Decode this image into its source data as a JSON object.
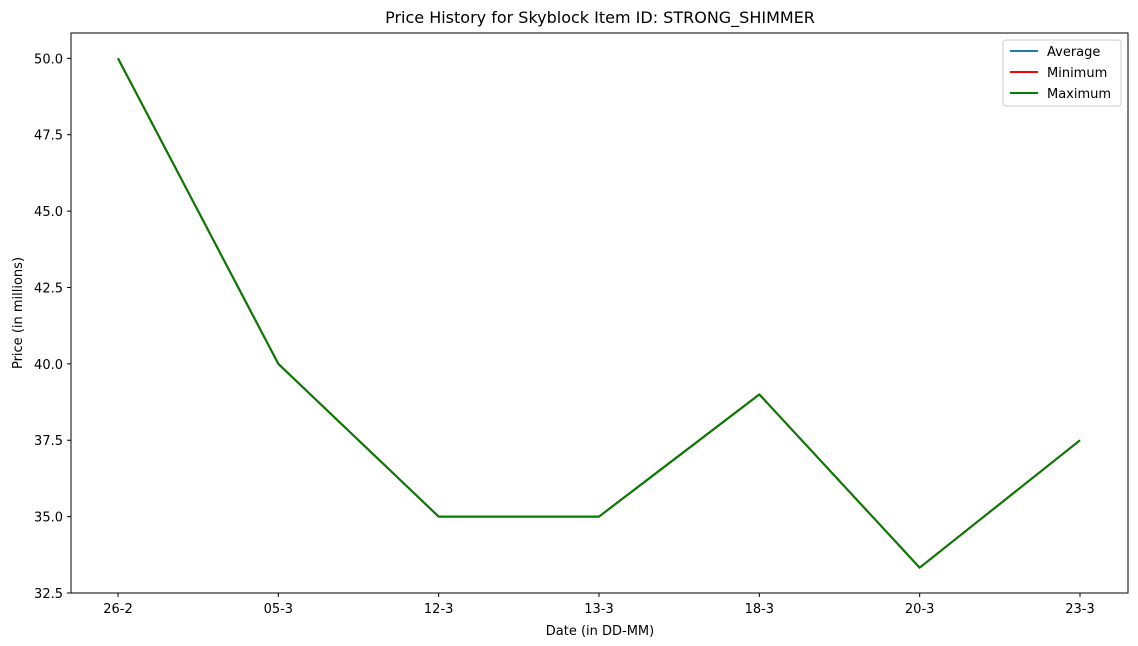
{
  "chart_data": {
    "type": "line",
    "title": "Price History for Skyblock Item ID: STRONG_SHIMMER",
    "xlabel": "Date (in DD-MM)",
    "ylabel": "Price (in millions)",
    "categories": [
      "26-2",
      "05-3",
      "12-3",
      "13-3",
      "18-3",
      "20-3",
      "23-3"
    ],
    "ylim": [
      32.5,
      50.83
    ],
    "yticks": [
      "32.5",
      "35.0",
      "37.5",
      "40.0",
      "42.5",
      "45.0",
      "47.5",
      "50.0"
    ],
    "grid": false,
    "legend_position": "top-right",
    "series": [
      {
        "name": "Average",
        "color": "#1f77b4",
        "values": [
          50.0,
          40.0,
          35.0,
          35.0,
          39.0,
          33.33,
          37.5
        ]
      },
      {
        "name": "Minimum",
        "color": "#ff0000",
        "values": [
          50.0,
          40.0,
          35.0,
          35.0,
          39.0,
          33.33,
          37.5
        ]
      },
      {
        "name": "Maximum",
        "color": "#008000",
        "values": [
          50.0,
          40.0,
          35.0,
          35.0,
          39.0,
          33.33,
          37.5
        ]
      }
    ]
  }
}
